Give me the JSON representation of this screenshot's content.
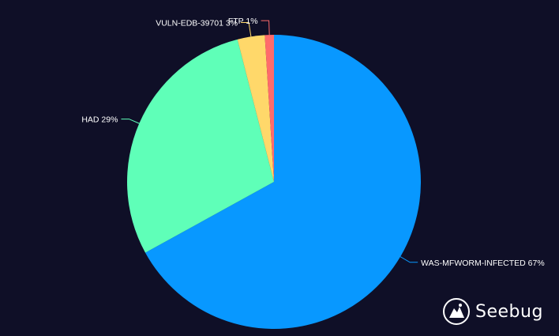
{
  "chart_data": {
    "type": "pie",
    "slices": [
      {
        "label": "WAS-MFWORM-INFECTED 67%",
        "name": "WAS-MFWORM-INFECTED",
        "value": 67,
        "color": "#0898ff"
      },
      {
        "label": "HAD 29%",
        "name": "HAD",
        "value": 29,
        "color": "#5fffb8"
      },
      {
        "label": "VULN-EDB-39701 3%",
        "name": "VULN-EDB-39701",
        "value": 3,
        "color": "#ffd86a"
      },
      {
        "label": "FTP 1%",
        "name": "FTP",
        "value": 1,
        "color": "#ff6b6b"
      }
    ]
  },
  "watermark": {
    "text": "Seebug",
    "icon": "seebug-logo-icon"
  }
}
